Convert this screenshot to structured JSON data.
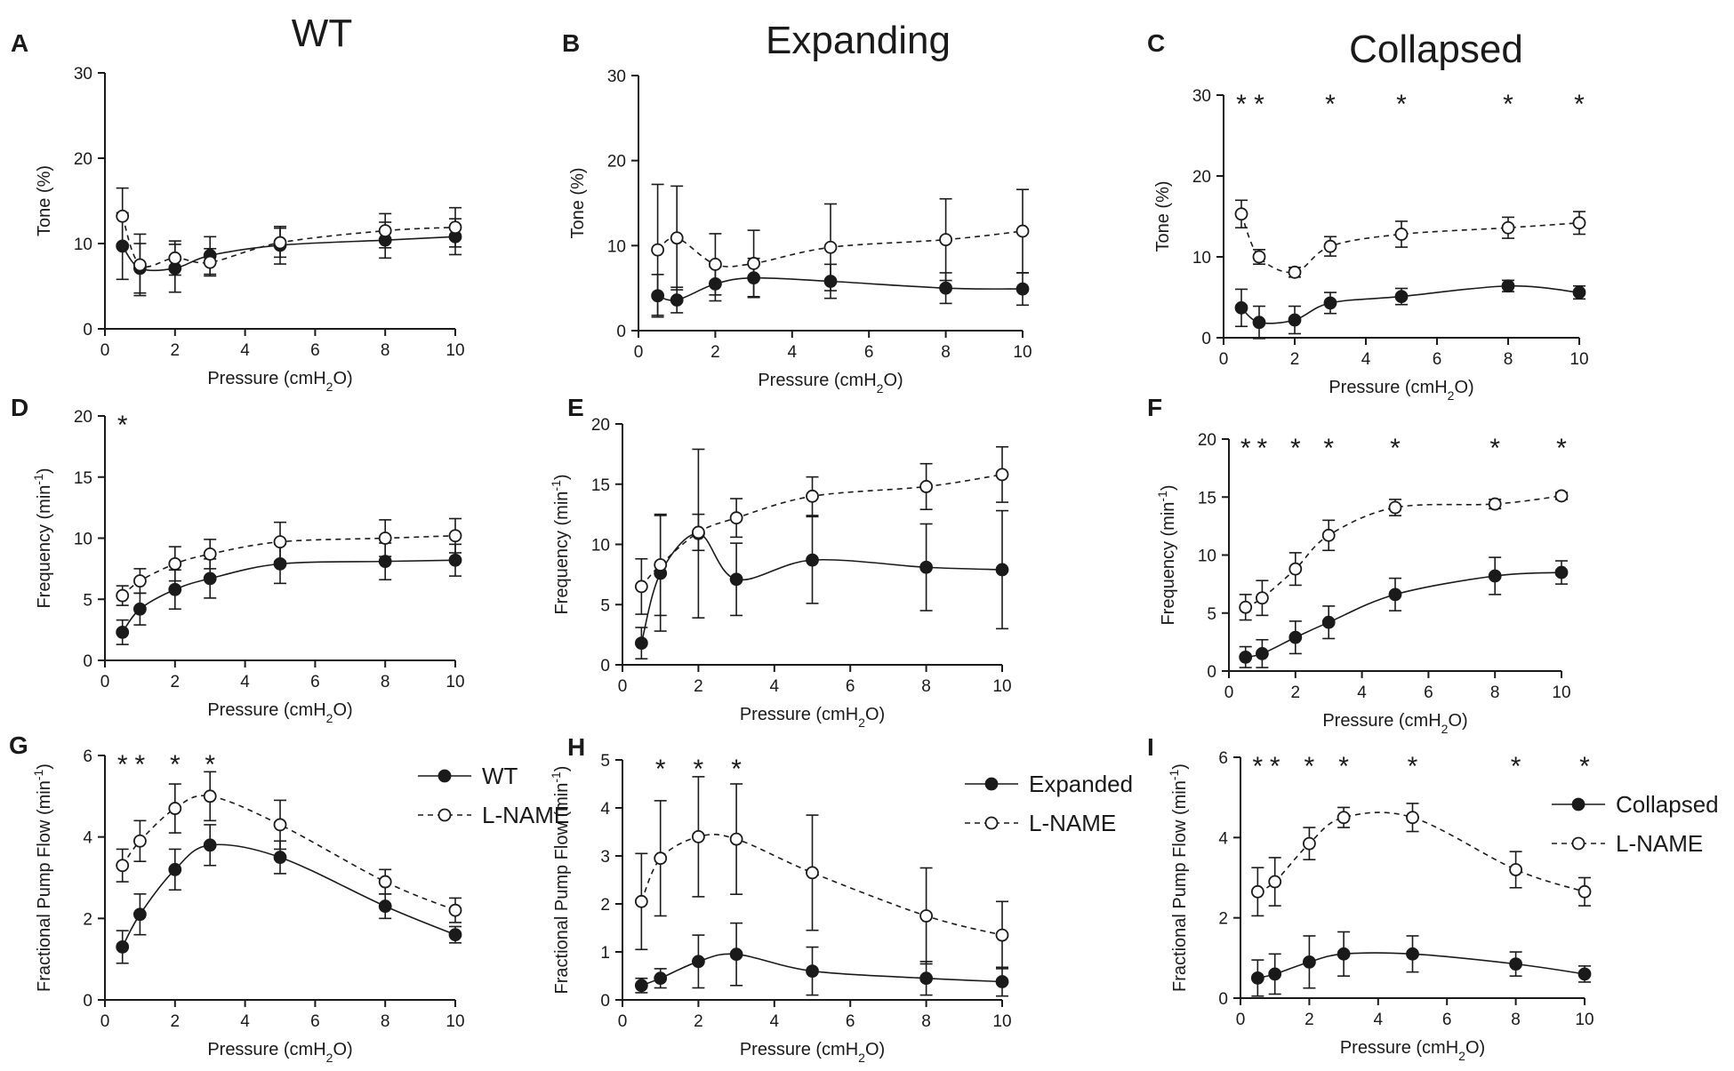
{
  "figure": {
    "column_titles": [
      "WT",
      "Expanding",
      "Collapsed"
    ]
  },
  "chart_data": [
    {
      "panel": "A",
      "type": "line",
      "title": "WT",
      "xlabel": "Pressure (cmH2O)",
      "ylabel": "Tone (%)",
      "xlim": [
        0,
        10
      ],
      "ylim": [
        0,
        30
      ],
      "xticks": [
        0,
        2,
        4,
        6,
        8,
        10
      ],
      "yticks": [
        0,
        10,
        20,
        30
      ],
      "x": [
        0.5,
        1,
        2,
        3,
        5,
        8,
        10
      ],
      "series": [
        {
          "name": "WT",
          "marker": "filled",
          "line": "solid",
          "values": [
            9.7,
            7.1,
            7.1,
            8.6,
            9.8,
            10.4,
            10.8
          ],
          "errors": [
            3.9,
            2.9,
            2.8,
            2.2,
            2.2,
            2.1,
            2.1
          ]
        },
        {
          "name": "L-NAME",
          "marker": "open",
          "line": "dashed",
          "values": [
            13.2,
            7.5,
            8.3,
            7.8,
            10.1,
            11.5,
            11.9
          ],
          "errors": [
            3.3,
            3.6,
            2.0,
            1.6,
            1.7,
            2.0,
            2.3
          ]
        }
      ],
      "significance": []
    },
    {
      "panel": "B",
      "type": "line",
      "title": "Expanding",
      "xlabel": "Pressure (cmH2O)",
      "ylabel": "Tone (%)",
      "xlim": [
        0,
        10
      ],
      "ylim": [
        0,
        30
      ],
      "xticks": [
        0,
        2,
        4,
        6,
        8,
        10
      ],
      "yticks": [
        0,
        10,
        20,
        30
      ],
      "x": [
        0.5,
        1,
        2,
        3,
        5,
        8,
        10
      ],
      "series": [
        {
          "name": "Expanded",
          "marker": "filled",
          "line": "solid",
          "values": [
            4.1,
            3.6,
            5.5,
            6.2,
            5.8,
            5.0,
            4.9
          ],
          "errors": [
            2.5,
            1.5,
            2.0,
            2.3,
            2.0,
            1.8,
            1.9
          ]
        },
        {
          "name": "L-NAME",
          "marker": "open",
          "line": "dashed",
          "values": [
            9.5,
            10.9,
            7.8,
            7.9,
            9.8,
            10.7,
            11.7
          ],
          "errors": [
            7.7,
            6.1,
            3.6,
            3.9,
            5.1,
            4.8,
            4.9
          ]
        }
      ],
      "significance": []
    },
    {
      "panel": "C",
      "type": "line",
      "title": "Collapsed",
      "xlabel": "Pressure (cmH2O)",
      "ylabel": "Tone (%)",
      "xlim": [
        0,
        10
      ],
      "ylim": [
        0,
        30
      ],
      "xticks": [
        0,
        2,
        4,
        6,
        8,
        10
      ],
      "yticks": [
        0,
        10,
        20,
        30
      ],
      "x": [
        0.5,
        1,
        2,
        3,
        5,
        8,
        10
      ],
      "series": [
        {
          "name": "Collapsed",
          "marker": "filled",
          "line": "solid",
          "values": [
            3.7,
            1.9,
            2.2,
            4.3,
            5.1,
            6.4,
            5.6
          ],
          "errors": [
            2.3,
            2.0,
            1.7,
            1.3,
            1.0,
            0.7,
            0.8
          ]
        },
        {
          "name": "L-NAME",
          "marker": "open",
          "line": "dashed",
          "values": [
            15.3,
            10.0,
            8.1,
            11.3,
            12.8,
            13.6,
            14.2
          ],
          "errors": [
            1.7,
            0.9,
            0.6,
            1.2,
            1.6,
            1.3,
            1.4
          ]
        }
      ],
      "significance": [
        0.5,
        1,
        3,
        5,
        8,
        10
      ]
    },
    {
      "panel": "D",
      "type": "line",
      "xlabel": "Pressure (cmH2O)",
      "ylabel": "Frequency (min-1)",
      "xlim": [
        0,
        10
      ],
      "ylim": [
        0,
        20
      ],
      "xticks": [
        0,
        2,
        4,
        6,
        8,
        10
      ],
      "yticks": [
        0,
        5,
        10,
        15,
        20
      ],
      "x": [
        0.5,
        1,
        2,
        3,
        5,
        8,
        10
      ],
      "series": [
        {
          "name": "WT",
          "marker": "filled",
          "line": "solid",
          "values": [
            2.3,
            4.2,
            5.8,
            6.7,
            7.9,
            8.1,
            8.2
          ],
          "errors": [
            1.0,
            1.3,
            1.6,
            1.6,
            1.6,
            1.5,
            1.3
          ]
        },
        {
          "name": "L-NAME",
          "marker": "open",
          "line": "dashed",
          "values": [
            5.3,
            6.5,
            7.9,
            8.7,
            9.7,
            10.0,
            10.2
          ],
          "errors": [
            0.8,
            1.0,
            1.4,
            1.2,
            1.6,
            1.5,
            1.4
          ]
        }
      ],
      "significance": [
        0.5
      ]
    },
    {
      "panel": "E",
      "type": "line",
      "xlabel": "Pressure (cmH2O)",
      "ylabel": "Frequency (min-1)",
      "xlim": [
        0,
        10
      ],
      "ylim": [
        0,
        20
      ],
      "xticks": [
        0,
        2,
        4,
        6,
        8,
        10
      ],
      "yticks": [
        0,
        5,
        10,
        15,
        20
      ],
      "x": [
        0.5,
        1,
        2,
        3,
        5,
        8,
        10
      ],
      "series": [
        {
          "name": "Expanded",
          "marker": "filled",
          "line": "solid",
          "values": [
            1.8,
            7.6,
            10.9,
            7.1,
            8.7,
            8.1,
            7.9
          ],
          "errors": [
            1.3,
            4.8,
            7.0,
            3.0,
            3.6,
            3.6,
            4.9
          ]
        },
        {
          "name": "L-NAME",
          "marker": "open",
          "line": "dashed",
          "values": [
            6.5,
            8.3,
            11.0,
            12.2,
            14.0,
            14.8,
            15.8
          ],
          "errors": [
            2.3,
            4.2,
            1.5,
            1.6,
            1.6,
            1.9,
            2.3
          ]
        }
      ],
      "significance": []
    },
    {
      "panel": "F",
      "type": "line",
      "xlabel": "Pressure (cmH2O)",
      "ylabel": "Frequency (min-1)",
      "xlim": [
        0,
        10
      ],
      "ylim": [
        0,
        20
      ],
      "xticks": [
        0,
        2,
        4,
        6,
        8,
        10
      ],
      "yticks": [
        0,
        5,
        10,
        15,
        20
      ],
      "x": [
        0.5,
        1,
        2,
        3,
        5,
        8,
        10
      ],
      "series": [
        {
          "name": "Collapsed",
          "marker": "filled",
          "line": "solid",
          "values": [
            1.2,
            1.5,
            2.9,
            4.2,
            6.6,
            8.2,
            8.5
          ],
          "errors": [
            0.9,
            1.2,
            1.4,
            1.4,
            1.4,
            1.6,
            1.0
          ]
        },
        {
          "name": "L-NAME",
          "marker": "open",
          "line": "dashed",
          "values": [
            5.5,
            6.3,
            8.8,
            11.7,
            14.1,
            14.4,
            15.1
          ],
          "errors": [
            1.1,
            1.5,
            1.4,
            1.3,
            0.7,
            0.4,
            0.3
          ]
        }
      ],
      "significance": [
        0.5,
        1,
        2,
        3,
        5,
        8,
        10
      ]
    },
    {
      "panel": "G",
      "type": "line",
      "xlabel": "Pressure (cmH2O)",
      "ylabel": "Fractional Pump Flow (min-1)",
      "xlim": [
        0,
        10
      ],
      "ylim": [
        0,
        6
      ],
      "xticks": [
        0,
        2,
        4,
        6,
        8,
        10
      ],
      "yticks": [
        0,
        2,
        4,
        6
      ],
      "x": [
        0.5,
        1,
        2,
        3,
        5,
        8,
        10
      ],
      "series": [
        {
          "name": "WT",
          "marker": "filled",
          "line": "solid",
          "values": [
            1.3,
            2.1,
            3.2,
            3.8,
            3.5,
            2.3,
            1.6
          ],
          "errors": [
            0.4,
            0.5,
            0.5,
            0.5,
            0.4,
            0.3,
            0.2
          ]
        },
        {
          "name": "L-NAME",
          "marker": "open",
          "line": "dashed",
          "values": [
            3.3,
            3.9,
            4.7,
            5.0,
            4.3,
            2.9,
            2.2
          ],
          "errors": [
            0.4,
            0.5,
            0.6,
            0.6,
            0.6,
            0.3,
            0.3
          ]
        }
      ],
      "legend": {
        "position": "right",
        "entries": [
          "WT",
          "L-NAME"
        ]
      },
      "significance": [
        0.5,
        1,
        2,
        3
      ]
    },
    {
      "panel": "H",
      "type": "line",
      "xlabel": "Pressure (cmH2O)",
      "ylabel": "Fractional Pump Flow (min-1)",
      "xlim": [
        0,
        10
      ],
      "ylim": [
        0,
        5
      ],
      "xticks": [
        0,
        2,
        4,
        6,
        8,
        10
      ],
      "yticks": [
        0,
        1,
        2,
        3,
        4,
        5
      ],
      "x": [
        0.5,
        1,
        2,
        3,
        5,
        8,
        10
      ],
      "series": [
        {
          "name": "Expanded",
          "marker": "filled",
          "line": "solid",
          "values": [
            0.3,
            0.45,
            0.8,
            0.95,
            0.6,
            0.45,
            0.38
          ],
          "errors": [
            0.15,
            0.2,
            0.55,
            0.65,
            0.5,
            0.35,
            0.3
          ]
        },
        {
          "name": "L-NAME",
          "marker": "open",
          "line": "dashed",
          "values": [
            2.05,
            2.95,
            3.4,
            3.35,
            2.65,
            1.75,
            1.35
          ],
          "errors": [
            1.0,
            1.2,
            1.25,
            1.15,
            1.2,
            1.0,
            0.7
          ]
        }
      ],
      "legend": {
        "position": "top-right",
        "entries": [
          "Expanded",
          "L-NAME"
        ]
      },
      "significance": [
        1,
        2,
        3
      ]
    },
    {
      "panel": "I",
      "type": "line",
      "xlabel": "Pressure (cmH2O)",
      "ylabel": "Fractional Pump Flow (min-1)",
      "xlim": [
        0,
        10
      ],
      "ylim": [
        0,
        6
      ],
      "xticks": [
        0,
        2,
        4,
        6,
        8,
        10
      ],
      "yticks": [
        0,
        2,
        4,
        6
      ],
      "x": [
        0.5,
        1,
        2,
        3,
        5,
        8,
        10
      ],
      "series": [
        {
          "name": "Collapsed",
          "marker": "filled",
          "line": "solid",
          "values": [
            0.5,
            0.6,
            0.9,
            1.1,
            1.1,
            0.85,
            0.6
          ],
          "errors": [
            0.45,
            0.5,
            0.65,
            0.55,
            0.45,
            0.3,
            0.2
          ]
        },
        {
          "name": "L-NAME",
          "marker": "open",
          "line": "dashed",
          "values": [
            2.65,
            2.9,
            3.85,
            4.5,
            4.5,
            3.2,
            2.65
          ],
          "errors": [
            0.6,
            0.6,
            0.4,
            0.25,
            0.35,
            0.45,
            0.35
          ]
        }
      ],
      "legend": {
        "position": "right",
        "entries": [
          "Collapsed",
          "L-NAME"
        ]
      },
      "significance": [
        0.5,
        1,
        2,
        3,
        5,
        8,
        10
      ]
    }
  ]
}
